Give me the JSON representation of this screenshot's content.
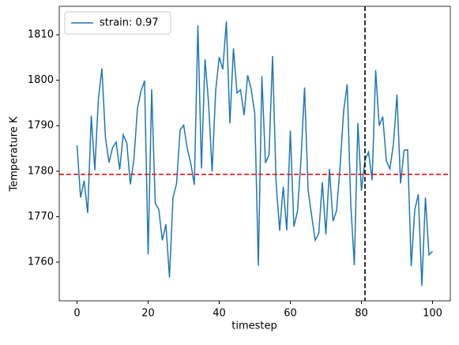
{
  "chart_data": {
    "type": "line",
    "x_label": "timestep",
    "y_label": "Temperature K",
    "x": [
      0,
      1,
      2,
      3,
      4,
      5,
      6,
      7,
      8,
      9,
      10,
      11,
      12,
      13,
      14,
      15,
      16,
      17,
      18,
      19,
      20,
      21,
      22,
      23,
      24,
      25,
      26,
      27,
      28,
      29,
      30,
      31,
      32,
      33,
      34,
      35,
      36,
      37,
      38,
      39,
      40,
      41,
      42,
      43,
      44,
      45,
      46,
      47,
      48,
      49,
      50,
      51,
      52,
      53,
      54,
      55,
      56,
      57,
      58,
      59,
      60,
      61,
      62,
      63,
      64,
      65,
      66,
      67,
      68,
      69,
      70,
      71,
      72,
      73,
      74,
      75,
      76,
      77,
      78,
      79,
      80,
      81,
      82,
      83,
      84,
      85,
      86,
      87,
      88,
      89,
      90,
      91,
      92,
      93,
      94,
      95,
      96,
      97,
      98,
      99,
      100
    ],
    "series": [
      {
        "name": "strain: 0.97",
        "color": "#1f77b4",
        "values": [
          1785.7,
          1774.2,
          1777.9,
          1770.8,
          1792.2,
          1780.2,
          1795.8,
          1802.6,
          1787.3,
          1781.9,
          1785.2,
          1786.4,
          1780.3,
          1788.0,
          1786.2,
          1777.1,
          1782.6,
          1793.8,
          1797.6,
          1799.9,
          1761.7,
          1798.0,
          1772.9,
          1771.6,
          1764.8,
          1768.3,
          1756.6,
          1774.2,
          1777.3,
          1789.1,
          1790.1,
          1785.0,
          1781.7,
          1777.0,
          1812.1,
          1780.6,
          1804.6,
          1795.0,
          1779.9,
          1797.7,
          1805.1,
          1802.4,
          1812.9,
          1790.5,
          1807.0,
          1797.2,
          1797.9,
          1792.3,
          1801.1,
          1798.0,
          1792.6,
          1759.2,
          1800.9,
          1781.8,
          1783.6,
          1805.3,
          1777.4,
          1766.9,
          1776.6,
          1767.0,
          1788.9,
          1767.8,
          1771.1,
          1782.6,
          1798.4,
          1775.8,
          1770.2,
          1764.8,
          1766.3,
          1777.6,
          1766.1,
          1780.5,
          1769.0,
          1771.3,
          1781.0,
          1793.3,
          1799.1,
          1772.7,
          1759.3,
          1790.6,
          1775.7,
          1782.5,
          1784.2,
          1778.0,
          1802.2,
          1790.0,
          1792.0,
          1782.3,
          1780.5,
          1785.9,
          1796.8,
          1777.3,
          1784.6,
          1784.7,
          1759.1,
          1771.5,
          1774.9,
          1754.8,
          1774.2,
          1761.6,
          1762.4
        ]
      }
    ],
    "hline": {
      "value": 1779.3,
      "color": "#e8141a"
    },
    "vline": {
      "value": 81,
      "color": "#000000"
    },
    "xlim": [
      -5,
      105
    ],
    "ylim": [
      1751.5,
      1816.25
    ],
    "xticks": [
      0,
      20,
      40,
      60,
      80,
      100
    ],
    "yticks": [
      1760,
      1770,
      1780,
      1790,
      1800,
      1810
    ],
    "legend": "upper left"
  }
}
